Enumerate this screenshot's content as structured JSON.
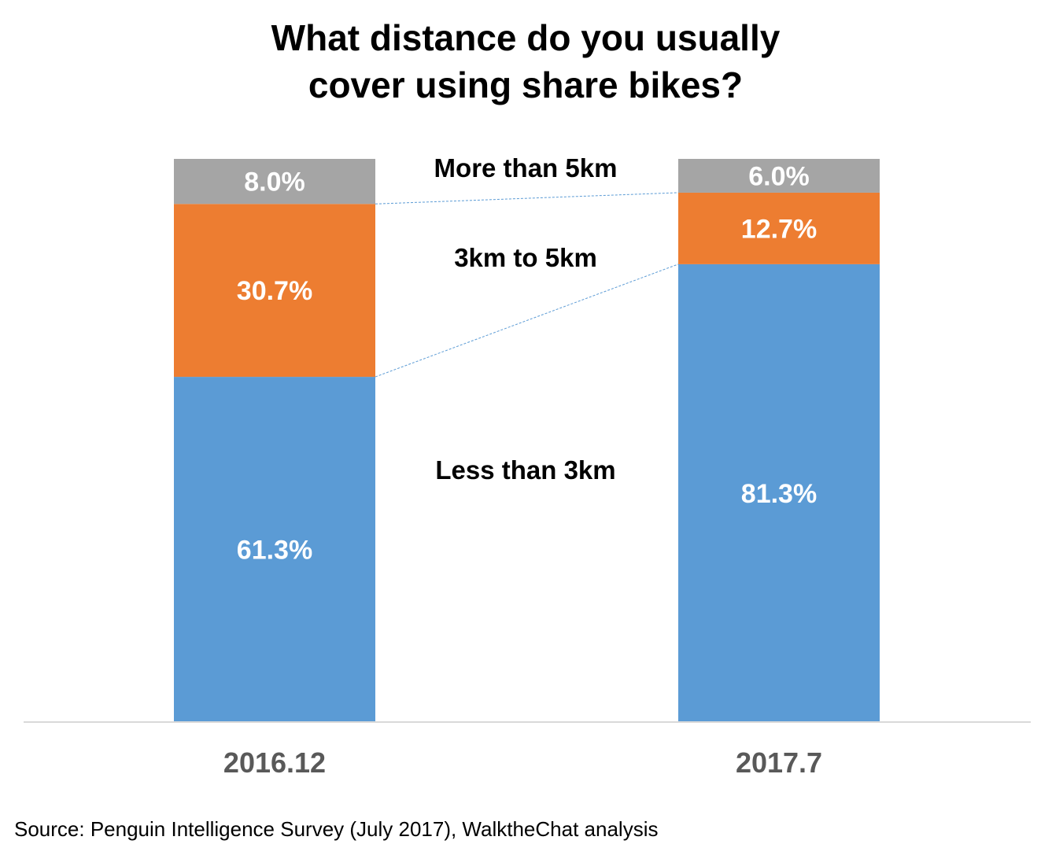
{
  "chart_data": {
    "type": "bar",
    "stacked": true,
    "title": "What distance do you usually cover using share bikes?",
    "title_lines": [
      "What distance do you usually",
      "cover using share bikes?"
    ],
    "categories": [
      "2016.12",
      "2017.7"
    ],
    "series": [
      {
        "name": "Less than 3km",
        "values": [
          61.3,
          81.3
        ],
        "labels": [
          "61.3%",
          "81.3%"
        ],
        "color": "#5B9BD5"
      },
      {
        "name": "3km to 5km",
        "values": [
          30.7,
          12.7
        ],
        "labels": [
          "30.7%",
          "12.7%"
        ],
        "color": "#ED7D31"
      },
      {
        "name": "More than 5km",
        "values": [
          8.0,
          6.0
        ],
        "labels": [
          "8.0%",
          "6.0%"
        ],
        "color": "#A5A5A5"
      }
    ],
    "ylim": [
      0,
      100
    ],
    "grid": false,
    "legend": "inline-between-bars",
    "series_lines": true,
    "source": "Source: Penguin Intelligence Survey (July 2017), WalktheChat analysis"
  }
}
